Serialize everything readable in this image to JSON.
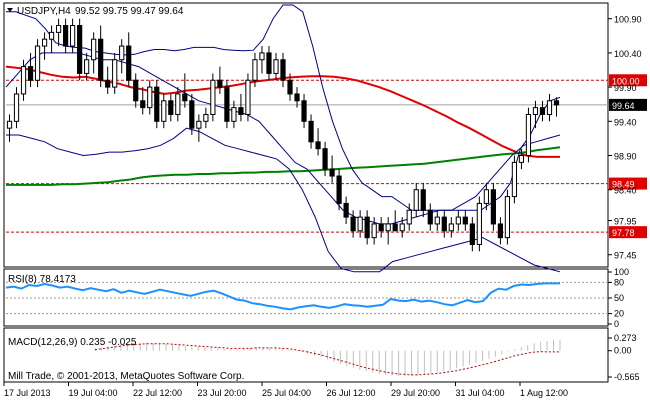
{
  "header": {
    "symbol": "USDJPY,H4",
    "ohlc": "99.52 99.75 99.47 99.64"
  },
  "colors": {
    "bull": "#ffffff",
    "bear": "#000000",
    "ma_slow": "#008000",
    "ma_fast": "#e00000",
    "bands": "#00008b",
    "rsi": "#1e90ff",
    "macd": "#c0c0c0",
    "signal": "#c00000",
    "level": "#e00000"
  },
  "chart_data": [
    {
      "type": "candlestick",
      "title": "USDJPY,H4",
      "ylim": [
        97.3,
        101.1
      ],
      "yticks": [
        "100.90",
        "100.40",
        "99.90",
        "99.40",
        "98.90",
        "98.40",
        "97.95",
        "97.45"
      ],
      "xticks": [
        "17 Jul 2013",
        "19 Jul 04:00",
        "22 Jul 12:00",
        "23 Jul 20:00",
        "25 Jul 04:00",
        "26 Jul 12:00",
        "29 Jul 20:00",
        "31 Jul 04:00",
        "1 Aug 12:00"
      ],
      "current_price": 99.64,
      "current_price_label": "99.64",
      "levels": [
        {
          "value": 100.0,
          "label": "100.00"
        },
        {
          "value": 98.49,
          "label": "98.49"
        },
        {
          "value": 97.78,
          "label": "97.78"
        }
      ],
      "candles": [
        [
          99.3,
          99.5,
          99.1,
          99.4
        ],
        [
          99.4,
          99.9,
          99.3,
          99.8
        ],
        [
          99.8,
          100.3,
          99.7,
          100.2
        ],
        [
          100.2,
          100.4,
          99.9,
          100.0
        ],
        [
          100.0,
          100.6,
          99.9,
          100.5
        ],
        [
          100.5,
          100.7,
          100.3,
          100.6
        ],
        [
          100.6,
          100.8,
          100.4,
          100.7
        ],
        [
          100.7,
          100.9,
          100.5,
          100.8
        ],
        [
          100.8,
          100.9,
          100.4,
          100.5
        ],
        [
          100.5,
          100.9,
          100.4,
          100.8
        ],
        [
          100.8,
          100.9,
          100.0,
          100.1
        ],
        [
          100.1,
          100.4,
          100.0,
          100.3
        ],
        [
          100.3,
          100.7,
          100.1,
          100.6
        ],
        [
          100.6,
          100.8,
          99.9,
          100.0
        ],
        [
          100.0,
          100.2,
          99.8,
          99.9
        ],
        [
          99.9,
          100.4,
          99.8,
          100.3
        ],
        [
          100.3,
          100.6,
          100.1,
          100.5
        ],
        [
          100.5,
          100.7,
          99.9,
          100.0
        ],
        [
          100.0,
          100.1,
          99.6,
          99.7
        ],
        [
          99.7,
          99.9,
          99.5,
          99.6
        ],
        [
          99.6,
          100.0,
          99.5,
          99.9
        ],
        [
          99.9,
          100.0,
          99.3,
          99.4
        ],
        [
          99.4,
          99.8,
          99.3,
          99.7
        ],
        [
          99.7,
          99.8,
          99.4,
          99.5
        ],
        [
          99.5,
          99.9,
          99.4,
          99.8
        ],
        [
          99.8,
          100.1,
          99.6,
          99.7
        ],
        [
          99.7,
          99.8,
          99.2,
          99.3
        ],
        [
          99.3,
          99.5,
          99.1,
          99.4
        ],
        [
          99.4,
          99.6,
          99.3,
          99.5
        ],
        [
          99.5,
          100.1,
          99.4,
          100.0
        ],
        [
          100.0,
          100.2,
          99.8,
          99.9
        ],
        [
          99.9,
          100.0,
          99.3,
          99.4
        ],
        [
          99.4,
          99.7,
          99.3,
          99.6
        ],
        [
          99.6,
          99.8,
          99.4,
          99.5
        ],
        [
          99.5,
          100.1,
          99.4,
          100.0
        ],
        [
          100.0,
          100.4,
          99.9,
          100.3
        ],
        [
          100.3,
          100.5,
          100.1,
          100.4
        ],
        [
          100.4,
          100.5,
          100.0,
          100.1
        ],
        [
          100.1,
          100.4,
          100.0,
          100.3
        ],
        [
          100.3,
          100.4,
          99.9,
          100.0
        ],
        [
          100.0,
          100.1,
          99.7,
          99.8
        ],
        [
          99.8,
          99.9,
          99.6,
          99.7
        ],
        [
          99.7,
          99.8,
          99.3,
          99.4
        ],
        [
          99.4,
          99.5,
          99.0,
          99.1
        ],
        [
          99.1,
          99.3,
          98.9,
          99.0
        ],
        [
          99.0,
          99.1,
          98.6,
          98.7
        ],
        [
          98.7,
          98.9,
          98.5,
          98.6
        ],
        [
          98.6,
          98.7,
          98.1,
          98.2
        ],
        [
          98.2,
          98.3,
          97.9,
          98.0
        ],
        [
          98.0,
          98.1,
          97.7,
          97.8
        ],
        [
          97.8,
          98.1,
          97.7,
          98.0
        ],
        [
          98.0,
          98.1,
          97.6,
          97.7
        ],
        [
          97.7,
          98.0,
          97.6,
          97.9
        ],
        [
          97.9,
          98.0,
          97.7,
          97.8
        ],
        [
          97.8,
          98.0,
          97.6,
          97.9
        ],
        [
          97.9,
          98.1,
          97.8,
          97.8
        ],
        [
          97.8,
          98.0,
          97.7,
          97.9
        ],
        [
          97.9,
          98.2,
          97.8,
          98.1
        ],
        [
          98.1,
          98.5,
          98.0,
          98.4
        ],
        [
          98.4,
          98.5,
          98.0,
          98.1
        ],
        [
          98.1,
          98.2,
          97.8,
          97.9
        ],
        [
          97.9,
          98.1,
          97.8,
          98.0
        ],
        [
          98.0,
          98.1,
          97.7,
          97.8
        ],
        [
          97.8,
          98.0,
          97.7,
          97.9
        ],
        [
          97.9,
          98.1,
          97.8,
          98.0
        ],
        [
          98.0,
          98.1,
          97.8,
          97.9
        ],
        [
          97.9,
          98.0,
          97.5,
          97.6
        ],
        [
          97.6,
          98.3,
          97.5,
          98.2
        ],
        [
          98.2,
          98.5,
          98.1,
          98.4
        ],
        [
          98.4,
          98.5,
          97.8,
          97.9
        ],
        [
          97.9,
          98.0,
          97.6,
          97.7
        ],
        [
          97.7,
          98.4,
          97.6,
          98.3
        ],
        [
          98.3,
          98.9,
          98.2,
          98.8
        ],
        [
          98.8,
          99.0,
          98.7,
          98.9
        ],
        [
          98.9,
          99.6,
          98.8,
          99.5
        ],
        [
          99.5,
          99.7,
          99.3,
          99.6
        ],
        [
          99.6,
          99.7,
          99.4,
          99.5
        ],
        [
          99.5,
          99.8,
          99.4,
          99.7
        ],
        [
          99.7,
          99.75,
          99.47,
          99.64
        ]
      ],
      "series": [
        {
          "name": "",
          "type": "ma_fast",
          "values": [
            100.2,
            100.18,
            100.16,
            100.12,
            100.08,
            100.05,
            100.04,
            100.05,
            100.02,
            99.98,
            99.95,
            99.9,
            99.87,
            99.83,
            99.8,
            99.82,
            99.85,
            99.86,
            99.88,
            99.9,
            99.92,
            99.95,
            99.98,
            100.0,
            100.02,
            100.04,
            100.05,
            100.06,
            100.06,
            100.05,
            100.03,
            100.0,
            99.95,
            99.9,
            99.84,
            99.77,
            99.7,
            99.63,
            99.55,
            99.47,
            99.38,
            99.3,
            99.21,
            99.12,
            99.03,
            98.96,
            98.9,
            98.88,
            98.88,
            98.88
          ]
        },
        {
          "name": "",
          "type": "ma_slow",
          "values": [
            98.47,
            98.47,
            98.47,
            98.47,
            98.47,
            98.48,
            98.48,
            98.49,
            98.5,
            98.51,
            98.53,
            98.55,
            98.58,
            98.6,
            98.61,
            98.62,
            98.62,
            98.63,
            98.63,
            98.64,
            98.64,
            98.65,
            98.65,
            98.66,
            98.66,
            98.67,
            98.67,
            98.68,
            98.69,
            98.7,
            98.71,
            98.72,
            98.73,
            98.74,
            98.75,
            98.76,
            98.77,
            98.78,
            98.8,
            98.82,
            98.84,
            98.86,
            98.88,
            98.9,
            98.92,
            98.93,
            98.95,
            98.98,
            99.0,
            99.02
          ]
        },
        {
          "name": "",
          "type": "band_upper",
          "values": [
            101.0,
            101.0,
            100.95,
            100.9,
            100.75,
            100.55,
            100.5,
            100.48,
            100.47,
            100.42,
            100.4,
            100.38,
            100.37,
            100.38,
            100.42,
            100.45,
            100.45,
            100.43,
            100.45,
            100.48,
            100.48,
            100.48,
            100.45,
            100.44,
            100.43,
            100.44,
            100.6,
            100.9,
            101.1,
            101.1,
            101.0,
            100.5,
            99.9,
            99.4,
            99.0,
            98.7,
            98.5,
            98.4,
            98.3,
            98.3,
            98.2,
            98.1,
            98.1,
            98.1,
            98.1,
            98.1,
            98.1,
            98.1,
            98.1,
            98.2,
            98.3,
            98.5,
            99.0,
            99.2,
            99.5,
            99.7,
            99.75
          ]
        },
        {
          "name": "",
          "type": "band_middle",
          "values": [
            99.9,
            100.1,
            100.3,
            100.4,
            100.4,
            100.4,
            100.4,
            100.35,
            100.3,
            100.3,
            100.25,
            100.2,
            100.1,
            100.0,
            99.9,
            99.8,
            99.7,
            99.65,
            99.6,
            99.55,
            99.5,
            99.4,
            99.2,
            99.0,
            98.8,
            98.7,
            98.5,
            98.3,
            98.1,
            98.0,
            97.95,
            97.9,
            97.9,
            97.95,
            98.0,
            98.05,
            98.1,
            98.1,
            98.2,
            98.3,
            98.5,
            98.7,
            98.9,
            99.05,
            99.1,
            99.15,
            99.2
          ]
        },
        {
          "name": "",
          "type": "band_lower",
          "values": [
            99.2,
            99.2,
            99.15,
            99.1,
            99.0,
            98.95,
            98.9,
            98.92,
            98.95,
            98.95,
            98.97,
            99.0,
            99.05,
            99.15,
            99.3,
            99.25,
            99.15,
            99.05,
            99.0,
            98.95,
            98.9,
            98.85,
            98.7,
            98.4,
            98.0,
            97.5,
            97.25,
            97.2,
            97.2,
            97.2,
            97.35,
            97.4,
            97.45,
            97.5,
            97.55,
            97.6,
            97.65,
            97.7,
            97.6,
            97.5,
            97.4,
            97.3,
            97.25,
            97.2
          ]
        }
      ]
    },
    {
      "type": "line",
      "title": "RSI(8) 78.4173",
      "ylim": [
        0,
        100
      ],
      "yticks": [
        "100",
        "80",
        "50",
        "20",
        "0"
      ],
      "series": [
        {
          "name": "",
          "values": [
            70,
            72,
            68,
            75,
            73,
            77,
            74,
            70,
            72,
            68,
            65,
            69,
            66,
            63,
            67,
            60,
            64,
            61,
            58,
            62,
            66,
            63,
            60,
            57,
            54,
            58,
            62,
            64,
            59,
            53,
            47,
            45,
            40,
            38,
            35,
            33,
            30,
            28,
            32,
            34,
            36,
            33,
            31,
            34,
            38,
            36,
            35,
            33,
            35,
            37,
            48,
            45,
            44,
            47,
            43,
            45,
            42,
            38,
            36,
            41,
            46,
            42,
            44,
            60,
            68,
            66,
            73,
            76,
            75,
            77,
            78,
            78,
            78
          ]
        }
      ]
    },
    {
      "type": "bar",
      "title": "MACD(12,26,9) 0.235 -0.025",
      "ylim": [
        -0.565,
        0.273
      ],
      "yticks": [
        "0.273",
        "0.00",
        "-0.565"
      ],
      "series": [
        {
          "name": "",
          "type": "macd",
          "values": [
            0.05,
            0.07,
            0.09,
            0.11,
            0.13,
            0.15,
            0.16,
            0.17,
            0.17,
            0.16,
            0.15,
            0.14,
            0.13,
            0.12,
            0.1,
            0.09,
            0.08,
            0.07,
            0.06,
            0.05,
            0.04,
            0.04,
            0.04,
            0.05,
            0.06,
            0.07,
            0.07,
            0.06,
            0.05,
            0.04,
            0.02,
            0.0,
            -0.03,
            -0.06,
            -0.1,
            -0.14,
            -0.19,
            -0.24,
            -0.29,
            -0.33,
            -0.37,
            -0.41,
            -0.44,
            -0.47,
            -0.5,
            -0.52,
            -0.54,
            -0.55,
            -0.55,
            -0.54,
            -0.53,
            -0.51,
            -0.49,
            -0.47,
            -0.44,
            -0.41,
            -0.38,
            -0.34,
            -0.3,
            -0.26,
            -0.22,
            -0.18,
            -0.13,
            -0.08,
            -0.02,
            0.03,
            0.08,
            0.12,
            0.16,
            0.19,
            0.21,
            0.23,
            0.235
          ]
        },
        {
          "name": "",
          "type": "signal",
          "values": [
            0.02,
            0.04,
            0.06,
            0.08,
            0.1,
            0.12,
            0.13,
            0.14,
            0.15,
            0.15,
            0.15,
            0.15,
            0.14,
            0.13,
            0.12,
            0.11,
            0.1,
            0.09,
            0.08,
            0.07,
            0.06,
            0.05,
            0.05,
            0.05,
            0.05,
            0.06,
            0.06,
            0.06,
            0.06,
            0.05,
            0.04,
            0.02,
            0.0,
            -0.03,
            -0.06,
            -0.09,
            -0.13,
            -0.17,
            -0.21,
            -0.25,
            -0.29,
            -0.33,
            -0.37,
            -0.4,
            -0.43,
            -0.46,
            -0.48,
            -0.5,
            -0.51,
            -0.52,
            -0.52,
            -0.51,
            -0.5,
            -0.49,
            -0.47,
            -0.45,
            -0.43,
            -0.4,
            -0.37,
            -0.34,
            -0.3,
            -0.27,
            -0.23,
            -0.19,
            -0.15,
            -0.11,
            -0.08,
            -0.05,
            -0.03,
            -0.02,
            -0.025,
            -0.025,
            -0.025
          ]
        }
      ]
    }
  ],
  "footer": {
    "copyright": "Mill Trade, © 2001-2013, MetaQuotes Software Corp."
  }
}
